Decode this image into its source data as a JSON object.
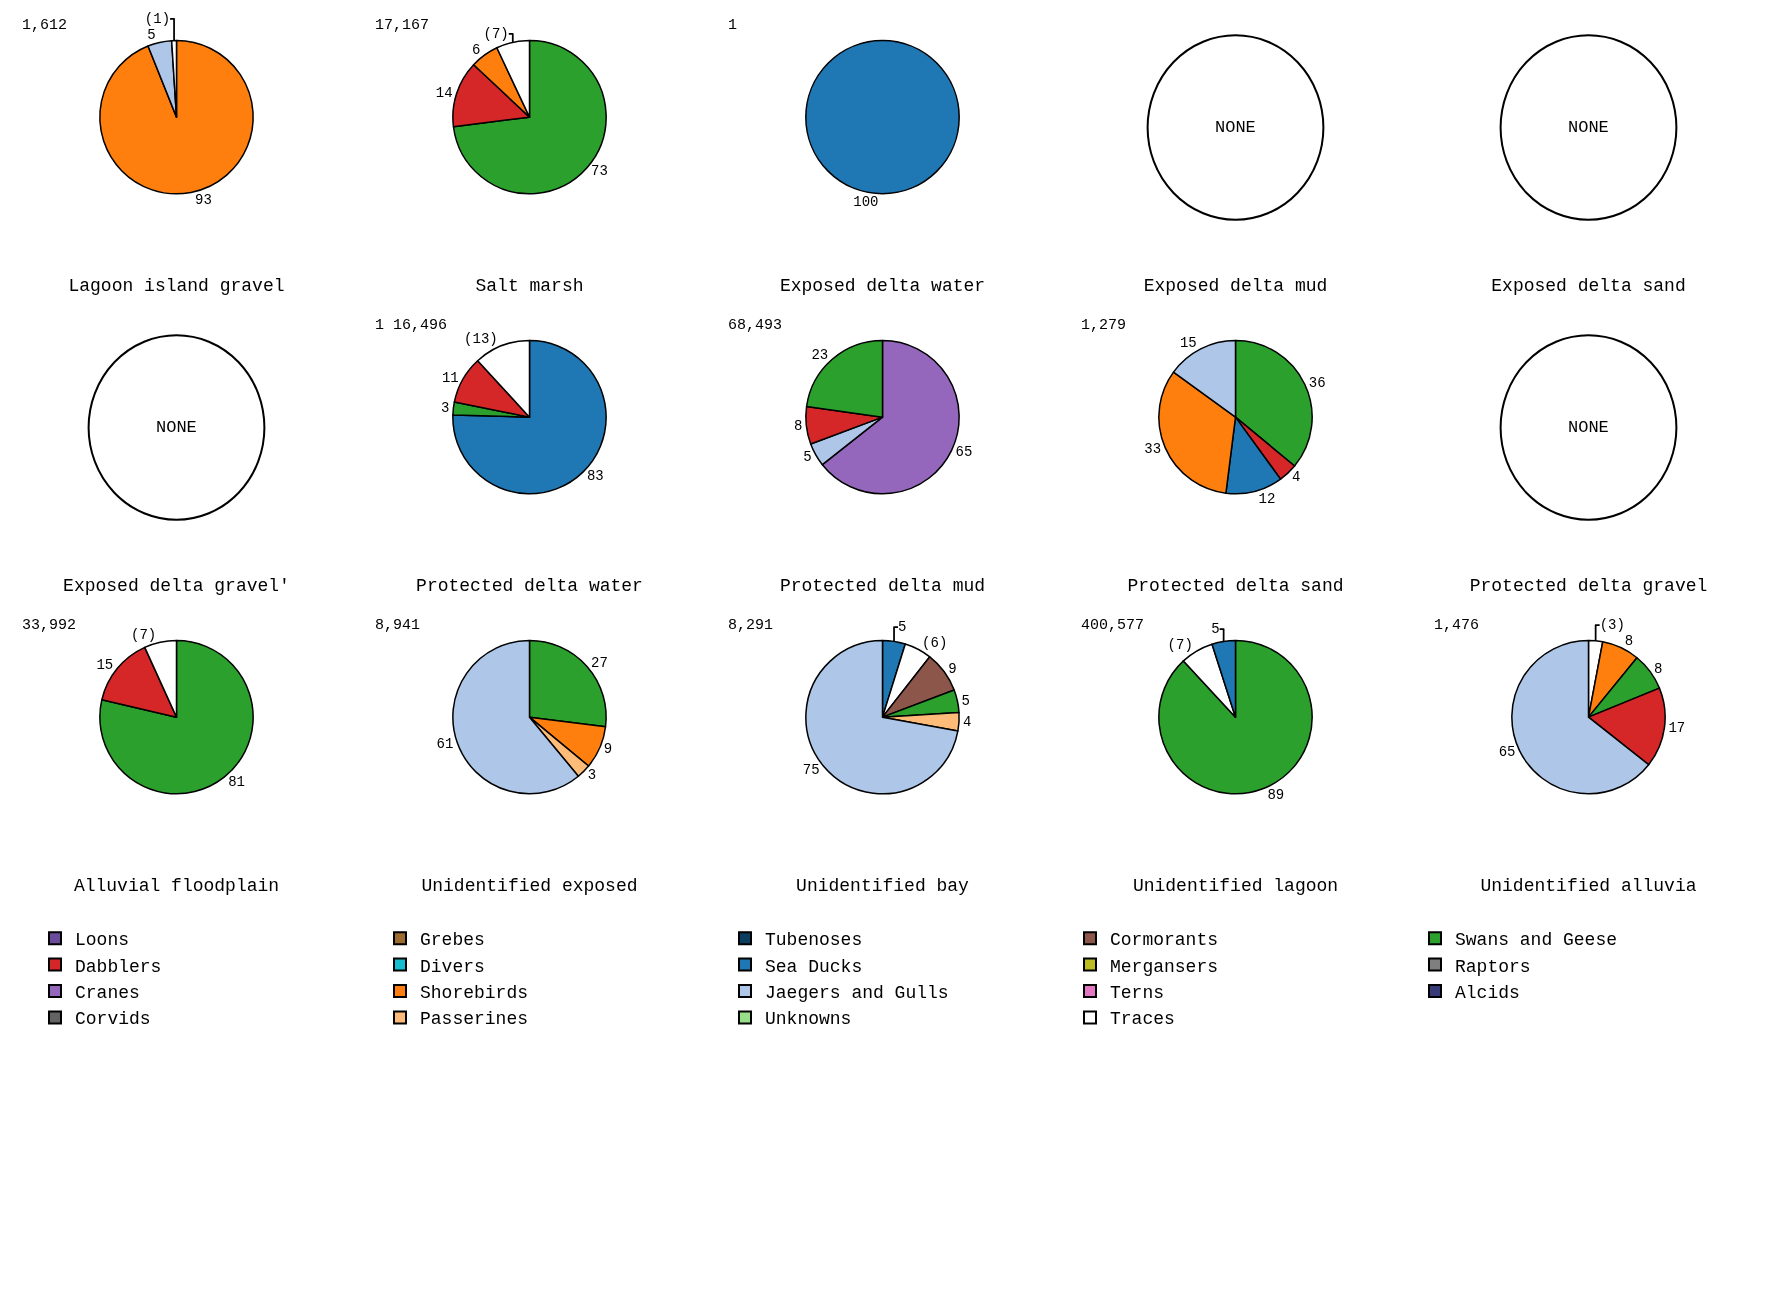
{
  "chart_data": [
    {
      "type": "pie",
      "title": "Lagoon island gravel",
      "subtitle": "1,612",
      "categories": [
        null,
        null,
        null
      ],
      "values": [
        93,
        5,
        1
      ],
      "colors": [
        "#ff7f0e",
        "#aec7e8",
        "#ffffff"
      ],
      "value_labels": [
        "93",
        "5",
        "(1)"
      ]
    },
    {
      "type": "pie",
      "title": "Salt marsh",
      "subtitle": "17,167",
      "categories": [
        null,
        null,
        null,
        null
      ],
      "values": [
        73,
        14,
        6,
        7
      ],
      "colors": [
        "#2ca02c",
        "#d62728",
        "#ff7f0e",
        "#ffffff"
      ],
      "value_labels": [
        "73",
        "14",
        "6",
        "(7)"
      ]
    },
    {
      "type": "pie",
      "title": "Exposed delta water",
      "subtitle": "1",
      "categories": [
        null
      ],
      "values": [
        100
      ],
      "colors": [
        "#1f77b4"
      ],
      "value_labels": [
        "100"
      ]
    },
    {
      "type": "other",
      "title": "Exposed delta mud",
      "annotations": [
        "NONE"
      ]
    },
    {
      "type": "other",
      "title": "Exposed delta sand",
      "annotations": [
        "NONE"
      ]
    },
    {
      "type": "other",
      "title": "Exposed delta gravel'",
      "annotations": [
        "NONE"
      ]
    },
    {
      "type": "pie",
      "title": "Protected delta water",
      "subtitle": "1 16,496",
      "categories": [
        null,
        null,
        null,
        null
      ],
      "values": [
        83,
        3,
        11,
        13
      ],
      "colors": [
        "#1f77b4",
        "#2ca02c",
        "#d62728",
        "#ffffff"
      ],
      "value_labels": [
        "83",
        "3",
        "11",
        "(13)"
      ]
    },
    {
      "type": "pie",
      "title": "Protected delta mud",
      "subtitle": "68,493",
      "categories": [
        null,
        null,
        null,
        null
      ],
      "values": [
        65,
        5,
        8,
        23
      ],
      "colors": [
        "#9467bd",
        "#aec7e8",
        "#d62728",
        "#2ca02c"
      ],
      "value_labels": [
        "65",
        "5",
        "8",
        "23"
      ]
    },
    {
      "type": "pie",
      "title": "Protected delta sand",
      "subtitle": "1,279",
      "categories": [
        null,
        null,
        null,
        null,
        null
      ],
      "values": [
        36,
        4,
        12,
        33,
        15
      ],
      "colors": [
        "#2ca02c",
        "#d62728",
        "#1f77b4",
        "#ff7f0e",
        "#aec7e8"
      ],
      "value_labels": [
        "36",
        "4",
        "12",
        "33",
        "15"
      ]
    },
    {
      "type": "other",
      "title": "Protected delta gravel",
      "annotations": [
        "NONE"
      ]
    },
    {
      "type": "pie",
      "title": "Alluvial floodplain",
      "subtitle": "33,992",
      "categories": [
        null,
        null,
        null
      ],
      "values": [
        81,
        15,
        7
      ],
      "colors": [
        "#2ca02c",
        "#d62728",
        "#ffffff"
      ],
      "value_labels": [
        "81",
        "15",
        "(7)"
      ]
    },
    {
      "type": "pie",
      "title": "Unidentified exposed",
      "subtitle": "8,941",
      "categories": [
        null,
        null,
        null,
        null
      ],
      "values": [
        27,
        9,
        3,
        61
      ],
      "colors": [
        "#2ca02c",
        "#ff7f0e",
        "#ffbb78",
        "#aec7e8"
      ],
      "value_labels": [
        "27",
        "9",
        "3",
        "61"
      ]
    },
    {
      "type": "pie",
      "title": "Unidentified bay",
      "subtitle": "8,291",
      "categories": [
        null,
        null,
        null,
        null,
        null,
        null
      ],
      "values": [
        5,
        6,
        9,
        5,
        4,
        75
      ],
      "colors": [
        "#1f77b4",
        "#ffffff",
        "#8c564b",
        "#2ca02c",
        "#ffbb78",
        "#aec7e8"
      ],
      "value_labels": [
        "5",
        "(6)",
        "9",
        "5",
        "4",
        "75"
      ]
    },
    {
      "type": "pie",
      "title": "Unidentified lagoon",
      "subtitle": "400,577",
      "categories": [
        null,
        null,
        null
      ],
      "values": [
        89,
        7,
        5
      ],
      "colors": [
        "#2ca02c",
        "#ffffff",
        "#1f77b4"
      ],
      "value_labels": [
        "89",
        "(7)",
        "5"
      ]
    },
    {
      "type": "pie",
      "title": "Unidentified alluvia",
      "subtitle": "1,476",
      "categories": [
        null,
        null,
        null,
        null,
        null
      ],
      "values": [
        3,
        8,
        8,
        17,
        65
      ],
      "colors": [
        "#ffffff",
        "#ff7f0e",
        "#2ca02c",
        "#d62728",
        "#aec7e8"
      ],
      "value_labels": [
        "(3)",
        "8",
        "8",
        "17",
        "65"
      ]
    },
    {
      "type": "other",
      "categories": [
        "Loons",
        "Grebes",
        "Tubenoses",
        "Cormorants",
        "Swans and Geese",
        "Dabblers",
        "Divers",
        "Sea Ducks",
        "Mergansers",
        "Raptors",
        "Cranes",
        "Shorebirds",
        "Jaegers and Gulls",
        "Terns",
        "Alcids",
        "Corvids",
        "Passerines",
        "Unknowns",
        "Traces"
      ],
      "colors": [
        "#6b4c9a",
        "#9c6b30",
        "#0b3d5e",
        "#8c564b",
        "#2ca02c",
        "#d62728",
        "#17becf",
        "#1f77b4",
        "#bcbd22",
        "#7f7f7f",
        "#9467bd",
        "#ff7f0e",
        "#aec7e8",
        "#e377c2",
        "#393b79",
        "#636363",
        "#ffbb78",
        "#98df8a",
        "#ffffff"
      ]
    }
  ]
}
